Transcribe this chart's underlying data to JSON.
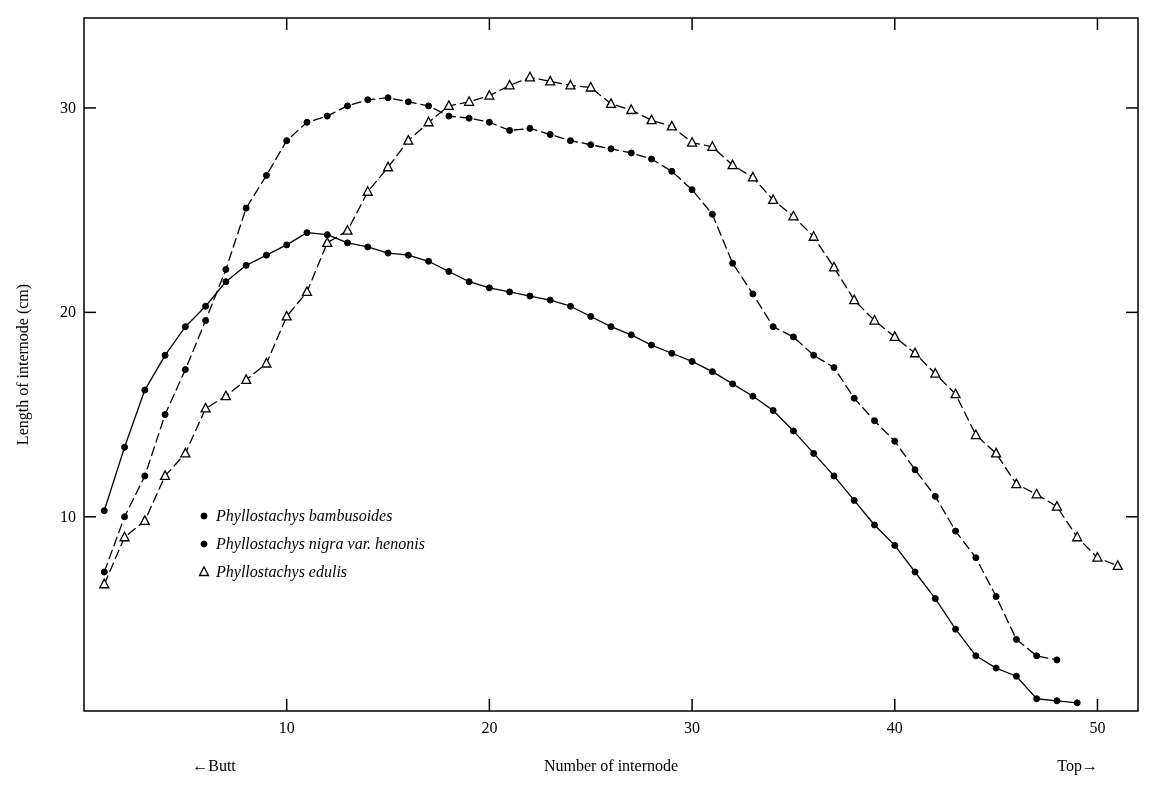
{
  "chart_data": {
    "type": "line",
    "xlabel": "Number of internode",
    "ylabel": "Length of internode (cm)",
    "annotations": [
      "←Butt",
      "Top→"
    ],
    "xlim": [
      0,
      52
    ],
    "ylim": [
      0.5,
      34.4
    ],
    "xticks": [
      10,
      20,
      30,
      40,
      50
    ],
    "yticks": [
      10,
      20,
      30
    ],
    "grid": false,
    "legend": "bottom left",
    "series": [
      {
        "name": "Phyllostachys bambusoides",
        "color": "#000000",
        "marker": "circle",
        "line_style": "solid",
        "x": [
          1,
          2,
          3,
          4,
          5,
          6,
          7,
          8,
          9,
          10,
          11,
          12,
          13,
          14,
          15,
          16,
          17,
          18,
          19,
          20,
          21,
          22,
          23,
          24,
          25,
          26,
          27,
          28,
          29,
          30,
          31,
          32,
          33,
          34,
          35,
          36,
          37,
          38,
          39,
          40,
          41,
          42,
          43,
          44,
          45,
          46,
          47,
          48,
          49
        ],
        "values": [
          10.3,
          13.4,
          16.2,
          17.9,
          19.3,
          20.3,
          21.5,
          22.3,
          22.8,
          23.3,
          23.9,
          23.8,
          23.4,
          23.2,
          22.9,
          22.8,
          22.5,
          22.0,
          21.5,
          21.2,
          21.0,
          20.8,
          20.6,
          20.3,
          19.8,
          19.3,
          18.9,
          18.4,
          18.0,
          17.6,
          17.1,
          16.5,
          15.9,
          15.2,
          14.2,
          13.1,
          12.0,
          10.8,
          9.6,
          8.6,
          7.3,
          6.0,
          4.5,
          3.2,
          2.6,
          2.2,
          1.1,
          1.0,
          0.9
        ]
      },
      {
        "name": "Phyllostachys nigra var. henonis",
        "color": "#000000",
        "marker": "circle",
        "line_style": "dashed",
        "x": [
          1,
          2,
          3,
          4,
          5,
          6,
          7,
          8,
          9,
          10,
          11,
          12,
          13,
          14,
          15,
          16,
          17,
          18,
          19,
          20,
          21,
          22,
          23,
          24,
          25,
          26,
          27,
          28,
          29,
          30,
          31,
          32,
          33,
          34,
          35,
          36,
          37,
          38,
          39,
          40,
          41,
          42,
          43,
          44,
          45,
          46,
          47,
          48
        ],
        "values": [
          7.3,
          10.0,
          12.0,
          15.0,
          17.2,
          19.6,
          22.1,
          25.1,
          26.7,
          28.4,
          29.3,
          29.6,
          30.1,
          30.4,
          30.5,
          30.3,
          30.1,
          29.6,
          29.5,
          29.3,
          28.9,
          29.0,
          28.7,
          28.4,
          28.2,
          28.0,
          27.8,
          27.5,
          26.9,
          26.0,
          24.8,
          22.4,
          20.9,
          19.3,
          18.8,
          17.9,
          17.3,
          15.8,
          14.7,
          13.7,
          12.3,
          11.0,
          9.3,
          8.0,
          6.1,
          4.0,
          3.2,
          3.0
        ]
      },
      {
        "name": "Phyllostachys edulis",
        "color": "#000000",
        "marker": "triangle",
        "line_style": "dashed",
        "x": [
          1,
          2,
          3,
          4,
          5,
          6,
          7,
          8,
          9,
          10,
          11,
          12,
          13,
          14,
          15,
          16,
          17,
          18,
          19,
          20,
          21,
          22,
          23,
          24,
          25,
          26,
          27,
          28,
          29,
          30,
          31,
          32,
          33,
          34,
          35,
          36,
          37,
          38,
          39,
          40,
          41,
          42,
          43,
          44,
          45,
          46,
          47,
          48,
          49,
          50,
          51
        ],
        "values": [
          6.7,
          9.0,
          9.8,
          12.0,
          13.1,
          15.3,
          15.9,
          16.7,
          17.5,
          19.8,
          21.0,
          23.4,
          24.0,
          25.9,
          27.1,
          28.4,
          29.3,
          30.1,
          30.3,
          30.6,
          31.1,
          31.5,
          31.3,
          31.1,
          31.0,
          30.2,
          29.9,
          29.4,
          29.1,
          28.3,
          28.1,
          27.2,
          26.6,
          25.5,
          24.7,
          23.7,
          22.2,
          20.6,
          19.6,
          18.8,
          18.0,
          17.0,
          16.0,
          14.0,
          13.1,
          11.6,
          11.1,
          10.5,
          9.0,
          8.0,
          7.6
        ]
      }
    ]
  }
}
